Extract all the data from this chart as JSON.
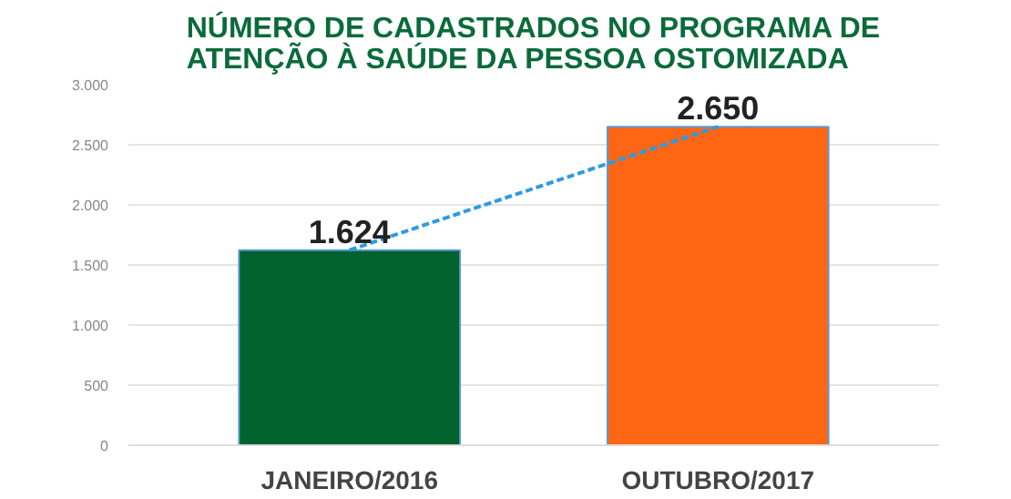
{
  "chart_data": {
    "type": "bar",
    "title": "NÚMERO DE CADASTRADOS NO PROGRAMA DE\nATENÇÃO À SAÚDE DA PESSOA OSTOMIZADA",
    "categories": [
      "JANEIRO/2016",
      "OUTUBRO/2017"
    ],
    "series": [
      {
        "colors": [
          "#02622d",
          "#ff6614"
        ],
        "values": [
          1624,
          2650
        ],
        "value_labels": [
          "1.624",
          "2.650"
        ]
      },
      {
        "type": "line",
        "color": "#2e9be0",
        "line_style": "dashed",
        "values": [
          1624,
          2650
        ]
      }
    ],
    "ylim": [
      0,
      3000
    ],
    "yticks": [
      {
        "value": 0,
        "label": "0"
      },
      {
        "value": 500,
        "label": "500"
      },
      {
        "value": 1000,
        "label": "1.000"
      },
      {
        "value": 1500,
        "label": "1.500"
      },
      {
        "value": 2000,
        "label": "2.000"
      },
      {
        "value": 2500,
        "label": "2.500"
      },
      {
        "value": 3000,
        "label": "3.000"
      }
    ],
    "grid": "y"
  }
}
